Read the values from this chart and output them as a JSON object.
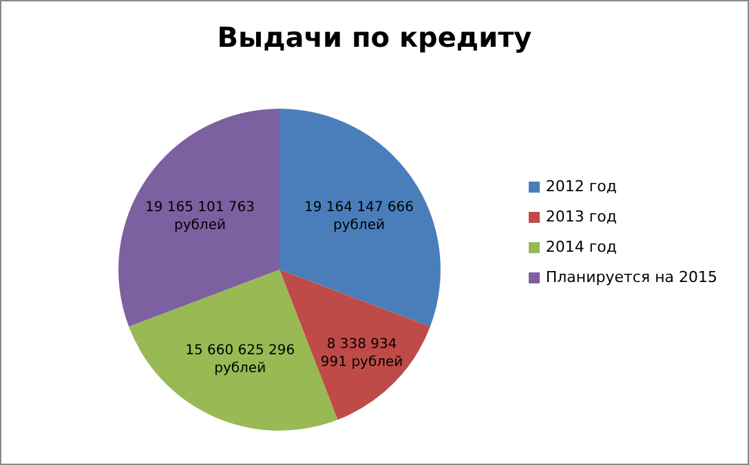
{
  "chart_data": {
    "type": "pie",
    "title": "Выдачи по кредиту",
    "categories": [
      "2012 год",
      "2013 год",
      "2014 год",
      "Планируется на 2015"
    ],
    "values": [
      19164147666,
      8338934991,
      15660625296,
      19165101763
    ],
    "colors": [
      "#4a7ebb",
      "#be4b48",
      "#98b954",
      "#7d60a0"
    ],
    "value_labels": [
      "19 164 147 666\nрублей",
      "8 338 934\n991 рублей",
      "15 660 625 296\nрублей",
      "19 165 101 763\nрублей"
    ],
    "legend": "right"
  }
}
